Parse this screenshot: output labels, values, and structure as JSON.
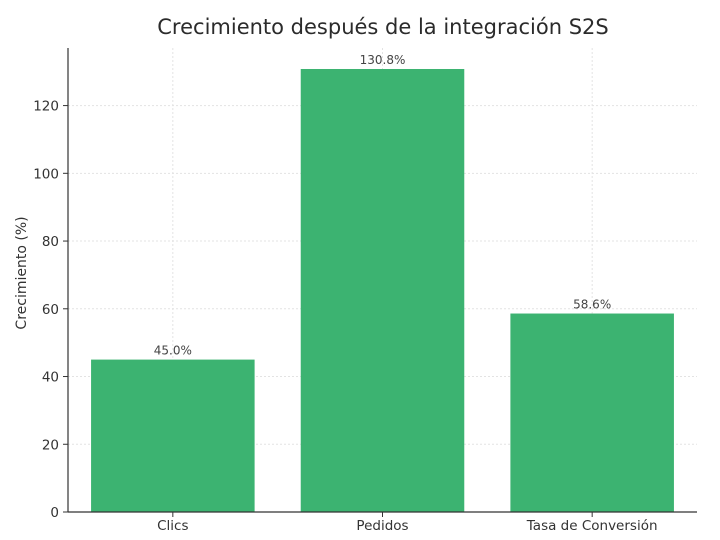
{
  "chart_data": {
    "type": "bar",
    "title": "Crecimiento después de la integración S2S",
    "xlabel": "",
    "ylabel": "Crecimiento (%)",
    "categories": [
      "Clics",
      "Pedidos",
      "Tasa de Conversión"
    ],
    "values": [
      45.0,
      130.8,
      58.6
    ],
    "data_labels": [
      "45.0%",
      "130.8%",
      "58.6%"
    ],
    "ylim": [
      0,
      137
    ],
    "yticks": [
      0,
      20,
      40,
      60,
      80,
      100,
      120
    ],
    "grid": true,
    "bar_color": "#3cb371"
  }
}
